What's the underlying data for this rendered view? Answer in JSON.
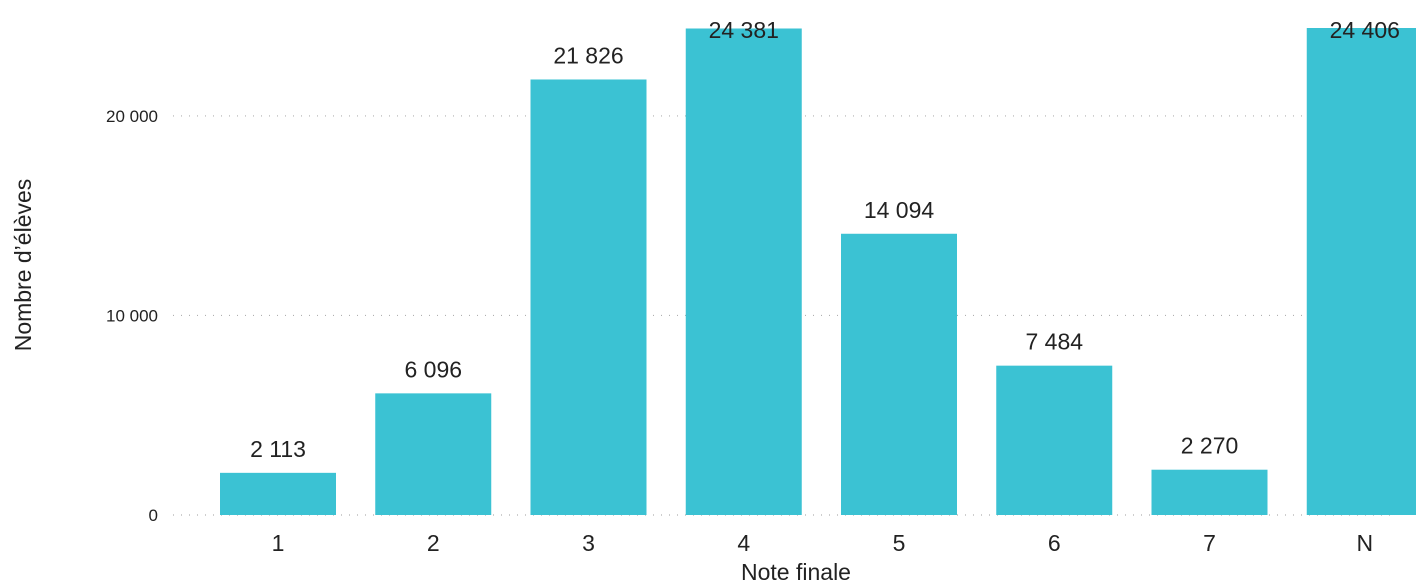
{
  "chart_data": {
    "type": "bar",
    "categories": [
      "1",
      "2",
      "3",
      "4",
      "5",
      "6",
      "7",
      "N"
    ],
    "values": [
      2113,
      6096,
      21826,
      24381,
      14094,
      7484,
      2270,
      24406
    ],
    "data_labels": [
      "2 113",
      "6 096",
      "21 826",
      "24 381",
      "14 094",
      "7 484",
      "2 270",
      "24 406"
    ],
    "xlabel": "Note finale",
    "ylabel": "Nombre d’élèves",
    "ylim": [
      0,
      24406
    ],
    "yticks": [
      0,
      10000,
      20000
    ],
    "ytick_labels": [
      "0",
      "10 000",
      "20 000"
    ],
    "grid": true,
    "colors": {
      "bar": "#3bc2d3"
    }
  }
}
